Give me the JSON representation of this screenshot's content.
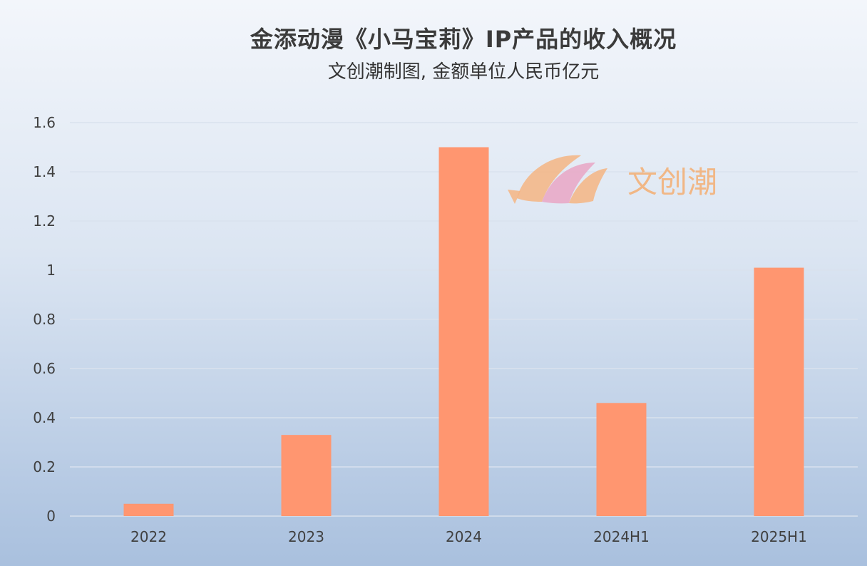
{
  "chart_data": {
    "type": "bar",
    "title": "金添动漫《小马宝莉》IP产品的收入概况",
    "subtitle": "文创潮制图, 金额单位人民币亿元",
    "categories": [
      "2022",
      "2023",
      "2024",
      "2024H1",
      "2025H1"
    ],
    "values": [
      0.05,
      0.33,
      1.5,
      0.46,
      1.01
    ],
    "yticks": [
      "0",
      "0.2",
      "0.4",
      "0.6",
      "0.8",
      "1",
      "1.2",
      "1.4",
      "1.6"
    ],
    "ylim": [
      0,
      1.6
    ],
    "grid": true,
    "bar_color": "#ff9670",
    "grid_color": "#d9e2ee"
  },
  "watermark": {
    "text": "文创潮",
    "icon": "fish-logo-icon"
  }
}
